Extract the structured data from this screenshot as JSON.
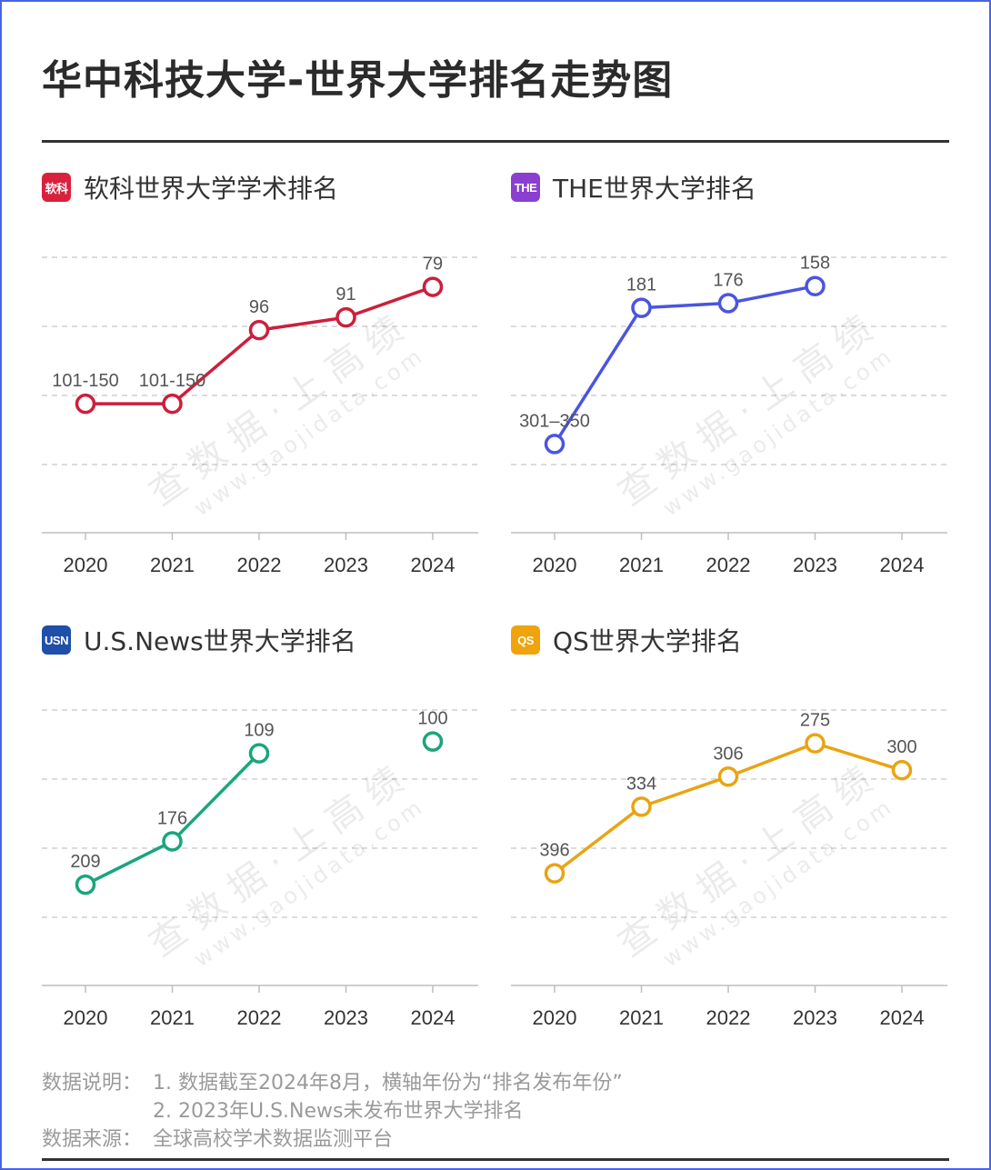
{
  "title": "华中科技大学-世界大学排名走势图",
  "watermark": {
    "main": "查 数 据 · 上 高 绩",
    "sub": "www.gaojidata.com"
  },
  "panels": [
    {
      "title": "软科世界大学学术排名",
      "logo": {
        "text": "软科",
        "color": "#d9213e"
      },
      "color": "#cc1f3b",
      "chart_data": {
        "type": "line",
        "categories": [
          "2020",
          "2021",
          "2022",
          "2023",
          "2024"
        ],
        "series": [
          {
            "values": [
              125,
              125,
              96,
              91,
              79
            ]
          }
        ],
        "data_labels": [
          "101-150",
          "101-150",
          "96",
          "91",
          "79"
        ],
        "segments": [
          [
            0,
            1
          ],
          [
            1,
            2
          ],
          [
            2,
            3
          ],
          [
            3,
            4
          ]
        ],
        "y_reversed": true,
        "ylim": [
          165,
          72
        ]
      }
    },
    {
      "title": "THE世界大学排名",
      "logo": {
        "text": "THE",
        "color": "#8a3fd1"
      },
      "color": "#4a55e0",
      "chart_data": {
        "type": "line",
        "categories": [
          "2020",
          "2021",
          "2022",
          "2023",
          "2024"
        ],
        "series": [
          {
            "values": [
              325,
              181,
              176,
              158,
              null
            ]
          }
        ],
        "data_labels": [
          "301–350",
          "181",
          "176",
          "158",
          ""
        ],
        "segments": [
          [
            0,
            1
          ],
          [
            1,
            2
          ],
          [
            2,
            3
          ]
        ],
        "y_reversed": true,
        "ylim": [
          390,
          140
        ]
      }
    },
    {
      "title": "U.S.News世界大学排名",
      "logo": {
        "text": "USN",
        "color": "#1f4fa8"
      },
      "color": "#1aa57d",
      "chart_data": {
        "type": "line",
        "categories": [
          "2020",
          "2021",
          "2022",
          "2023",
          "2024"
        ],
        "series": [
          {
            "values": [
              209,
              176,
              109,
              null,
              100
            ]
          }
        ],
        "data_labels": [
          "209",
          "176",
          "109",
          "",
          "100"
        ],
        "segments": [
          [
            0,
            1
          ],
          [
            1,
            2
          ]
        ],
        "y_reversed": true,
        "ylim": [
          265,
          85
        ]
      }
    },
    {
      "title": "QS世界大学排名",
      "logo": {
        "text": "QS",
        "color": "#f0a30a"
      },
      "color": "#e9a412",
      "chart_data": {
        "type": "line",
        "categories": [
          "2020",
          "2021",
          "2022",
          "2023",
          "2024"
        ],
        "series": [
          {
            "values": [
              396,
              334,
              306,
              275,
              300
            ]
          }
        ],
        "data_labels": [
          "396",
          "334",
          "306",
          "275",
          "300"
        ],
        "segments": [
          [
            0,
            1
          ],
          [
            1,
            2
          ],
          [
            2,
            3
          ],
          [
            3,
            4
          ]
        ],
        "y_reversed": true,
        "ylim": [
          475,
          255
        ]
      }
    }
  ],
  "notes": {
    "label1": "数据说明：",
    "line1": "1. 数据截至2024年8月，横轴年份为“排名发布年份”",
    "line2": "2. 2023年U.S.News未发布世界大学排名",
    "label2": "数据来源：",
    "line3": "全球高校学术数据监测平台"
  }
}
